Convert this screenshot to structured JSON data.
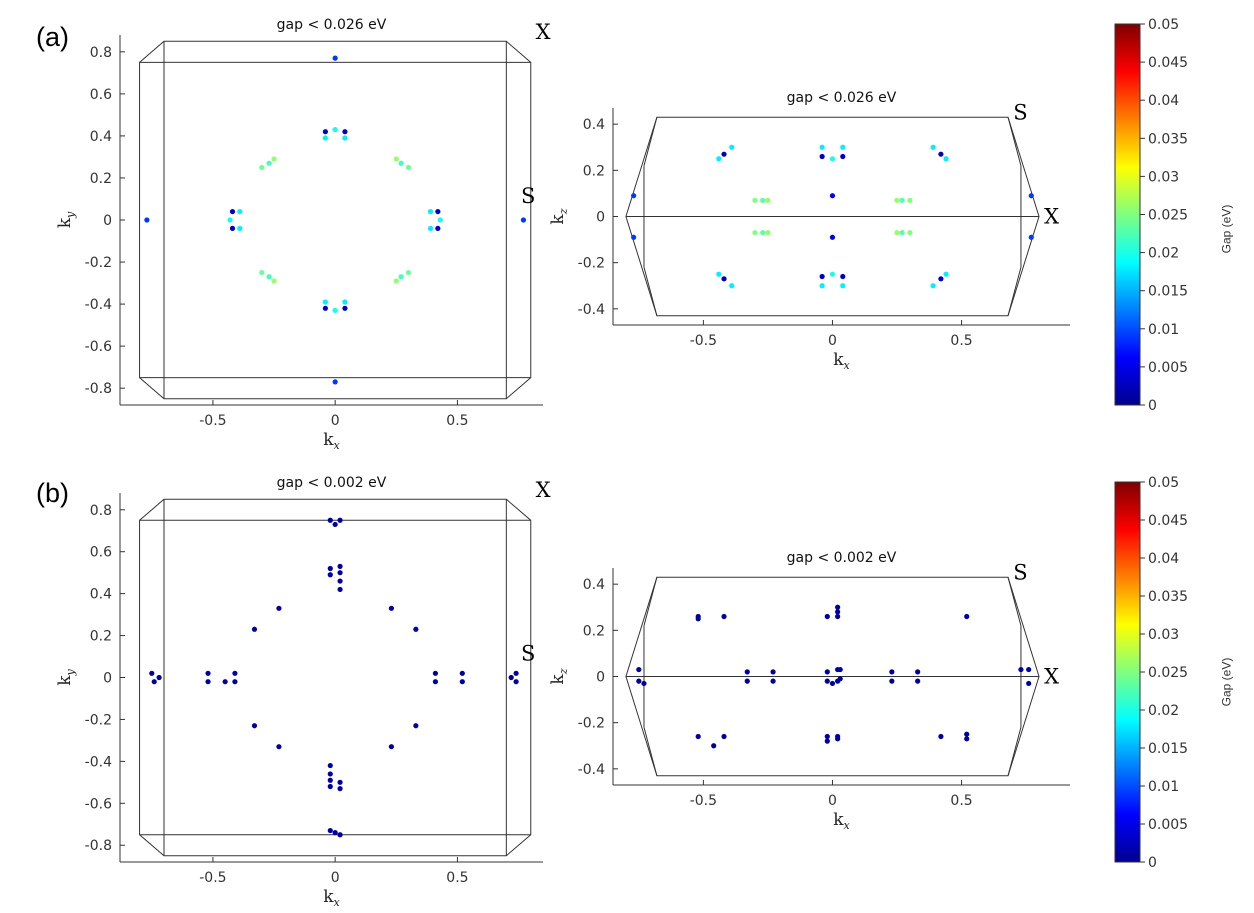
{
  "panel_labels": {
    "a": "(a)",
    "b": "(b)"
  },
  "colorbar": {
    "label": "Gap (eV)",
    "ticks": [
      "0.05",
      "0.045",
      "0.04",
      "0.035",
      "0.03",
      "0.025",
      "0.02",
      "0.015",
      "0.01",
      "0.005",
      "0"
    ],
    "range": [
      0,
      0.05
    ],
    "colormap": "jet"
  },
  "chart_data": [
    {
      "id": "a-kxky",
      "type": "scatter",
      "title": "gap < 0.026 eV",
      "xlabel": "k_x",
      "ylabel": "k_y",
      "xlim": [
        -0.88,
        0.85
      ],
      "ylim": [
        -0.88,
        0.88
      ],
      "xticks": [
        -0.5,
        0,
        0.5
      ],
      "yticks": [
        0.8,
        0.6,
        0.4,
        0.2,
        0,
        -0.2,
        -0.4,
        -0.6,
        -0.8
      ],
      "points_label": {
        "X": "X",
        "S": "S"
      },
      "brillouin_zone": "xy",
      "points": [
        [
          0,
          0.77,
          0.009
        ],
        [
          0,
          -0.77,
          0.009
        ],
        [
          -0.77,
          0,
          0.009
        ],
        [
          0.77,
          0,
          0.009
        ],
        [
          -0.04,
          0.42,
          0.003
        ],
        [
          0.04,
          0.42,
          0.003
        ],
        [
          -0.04,
          0.39,
          0.018
        ],
        [
          0.04,
          0.39,
          0.018
        ],
        [
          0,
          0.43,
          0.02
        ],
        [
          -0.04,
          -0.42,
          0.003
        ],
        [
          0.04,
          -0.42,
          0.003
        ],
        [
          -0.04,
          -0.39,
          0.018
        ],
        [
          0.04,
          -0.39,
          0.018
        ],
        [
          0,
          -0.43,
          0.02
        ],
        [
          0.42,
          0.04,
          0.003
        ],
        [
          0.42,
          -0.04,
          0.003
        ],
        [
          0.39,
          0.04,
          0.018
        ],
        [
          0.39,
          -0.04,
          0.018
        ],
        [
          0.43,
          0,
          0.02
        ],
        [
          -0.42,
          0.04,
          0.003
        ],
        [
          -0.42,
          -0.04,
          0.003
        ],
        [
          -0.39,
          0.04,
          0.018
        ],
        [
          -0.39,
          -0.04,
          0.018
        ],
        [
          -0.43,
          0,
          0.02
        ],
        [
          -0.3,
          0.25,
          0.024
        ],
        [
          -0.27,
          0.27,
          0.022
        ],
        [
          -0.25,
          0.29,
          0.026
        ],
        [
          0.3,
          0.25,
          0.024
        ],
        [
          0.27,
          0.27,
          0.022
        ],
        [
          0.25,
          0.29,
          0.026
        ],
        [
          -0.3,
          -0.25,
          0.024
        ],
        [
          -0.27,
          -0.27,
          0.022
        ],
        [
          -0.25,
          -0.29,
          0.026
        ],
        [
          0.3,
          -0.25,
          0.024
        ],
        [
          0.27,
          -0.27,
          0.022
        ],
        [
          0.25,
          -0.29,
          0.026
        ]
      ]
    },
    {
      "id": "a-kxkz",
      "type": "scatter",
      "title": "gap < 0.026 eV",
      "xlabel": "k_x",
      "ylabel": "k_z",
      "xlim": [
        -0.85,
        0.92
      ],
      "ylim": [
        -0.47,
        0.47
      ],
      "xticks": [
        -0.5,
        0,
        0.5
      ],
      "yticks": [
        0.4,
        0.2,
        0,
        -0.2,
        -0.4
      ],
      "points_label": {
        "X": "X",
        "S": "S"
      },
      "brillouin_zone": "xz",
      "points": [
        [
          -0.77,
          0.09,
          0.009
        ],
        [
          -0.77,
          -0.09,
          0.009
        ],
        [
          0.77,
          0.09,
          0.009
        ],
        [
          0.77,
          -0.09,
          0.009
        ],
        [
          0,
          0.09,
          0.005
        ],
        [
          0,
          -0.09,
          0.005
        ],
        [
          -0.44,
          0.25,
          0.018
        ],
        [
          -0.42,
          0.27,
          0.003
        ],
        [
          -0.39,
          0.3,
          0.018
        ],
        [
          0.44,
          0.25,
          0.018
        ],
        [
          0.42,
          0.27,
          0.003
        ],
        [
          0.39,
          0.3,
          0.018
        ],
        [
          -0.44,
          -0.25,
          0.018
        ],
        [
          -0.42,
          -0.27,
          0.003
        ],
        [
          -0.39,
          -0.3,
          0.018
        ],
        [
          0.44,
          -0.25,
          0.018
        ],
        [
          0.42,
          -0.27,
          0.003
        ],
        [
          0.39,
          -0.3,
          0.018
        ],
        [
          -0.04,
          0.3,
          0.018
        ],
        [
          0.04,
          0.3,
          0.018
        ],
        [
          -0.04,
          0.26,
          0.003
        ],
        [
          0.04,
          0.26,
          0.003
        ],
        [
          0,
          0.25,
          0.02
        ],
        [
          -0.04,
          -0.3,
          0.018
        ],
        [
          0.04,
          -0.3,
          0.018
        ],
        [
          -0.04,
          -0.26,
          0.003
        ],
        [
          0.04,
          -0.26,
          0.003
        ],
        [
          0,
          -0.25,
          0.02
        ],
        [
          -0.3,
          0.07,
          0.025
        ],
        [
          -0.27,
          0.07,
          0.023
        ],
        [
          -0.25,
          0.07,
          0.026
        ],
        [
          0.3,
          0.07,
          0.025
        ],
        [
          0.27,
          0.07,
          0.023
        ],
        [
          0.25,
          0.07,
          0.026
        ],
        [
          -0.3,
          -0.07,
          0.025
        ],
        [
          -0.27,
          -0.07,
          0.023
        ],
        [
          -0.25,
          -0.07,
          0.026
        ],
        [
          0.3,
          -0.07,
          0.025
        ],
        [
          0.27,
          -0.07,
          0.023
        ],
        [
          0.25,
          -0.07,
          0.026
        ]
      ]
    },
    {
      "id": "b-kxky",
      "type": "scatter",
      "title": "gap < 0.002 eV",
      "xlabel": "k_x",
      "ylabel": "k_y",
      "xlim": [
        -0.88,
        0.85
      ],
      "ylim": [
        -0.88,
        0.88
      ],
      "xticks": [
        -0.5,
        0,
        0.5
      ],
      "yticks": [
        0.8,
        0.6,
        0.4,
        0.2,
        0,
        -0.2,
        -0.4,
        -0.6,
        -0.8
      ],
      "points_label": {
        "X": "X",
        "S": "S"
      },
      "brillouin_zone": "xy",
      "points": [
        [
          -0.02,
          0.75,
          0.001
        ],
        [
          0.02,
          0.75,
          0.001
        ],
        [
          0,
          0.73,
          0.001
        ],
        [
          -0.02,
          -0.73,
          0.001
        ],
        [
          0.02,
          -0.75,
          0.001
        ],
        [
          0,
          -0.74,
          0.001
        ],
        [
          -0.02,
          0.52,
          0.001
        ],
        [
          0.02,
          0.53,
          0.001
        ],
        [
          -0.02,
          0.49,
          0.001
        ],
        [
          0.02,
          0.5,
          0.001
        ],
        [
          0.02,
          0.46,
          0.001
        ],
        [
          0.02,
          0.42,
          0.001
        ],
        [
          -0.02,
          -0.52,
          0.001
        ],
        [
          0.02,
          -0.53,
          0.001
        ],
        [
          -0.02,
          -0.49,
          0.001
        ],
        [
          0.02,
          -0.5,
          0.001
        ],
        [
          -0.02,
          -0.46,
          0.001
        ],
        [
          -0.02,
          -0.42,
          0.001
        ],
        [
          -0.75,
          0.02,
          0.001
        ],
        [
          -0.74,
          -0.02,
          0.001
        ],
        [
          -0.72,
          0,
          0.001
        ],
        [
          0.72,
          0,
          0.001
        ],
        [
          0.74,
          0.02,
          0.001
        ],
        [
          0.74,
          -0.02,
          0.001
        ],
        [
          -0.52,
          0.02,
          0.001
        ],
        [
          -0.52,
          -0.02,
          0.001
        ],
        [
          -0.45,
          -0.02,
          0.001
        ],
        [
          -0.41,
          0.02,
          0.001
        ],
        [
          -0.41,
          -0.02,
          0.001
        ],
        [
          0.52,
          0.02,
          0.001
        ],
        [
          0.52,
          -0.02,
          0.001
        ],
        [
          0.41,
          0.02,
          0.001
        ],
        [
          0.41,
          -0.02,
          0.001
        ],
        [
          -0.33,
          0.23,
          0.001
        ],
        [
          -0.23,
          0.33,
          0.001
        ],
        [
          0.23,
          0.33,
          0.001
        ],
        [
          0.33,
          0.23,
          0.001
        ],
        [
          -0.33,
          -0.23,
          0.001
        ],
        [
          -0.23,
          -0.33,
          0.001
        ],
        [
          0.23,
          -0.33,
          0.001
        ],
        [
          0.33,
          -0.23,
          0.001
        ]
      ]
    },
    {
      "id": "b-kxkz",
      "type": "scatter",
      "title": "gap < 0.002 eV",
      "xlabel": "k_x",
      "ylabel": "k_z",
      "xlim": [
        -0.85,
        0.92
      ],
      "ylim": [
        -0.47,
        0.47
      ],
      "xticks": [
        -0.5,
        0,
        0.5
      ],
      "yticks": [
        0.4,
        0.2,
        0,
        -0.2,
        -0.4
      ],
      "points_label": {
        "X": "X",
        "S": "S"
      },
      "brillouin_zone": "xz",
      "points": [
        [
          -0.75,
          0.03,
          0.001
        ],
        [
          -0.75,
          -0.02,
          0.001
        ],
        [
          -0.73,
          -0.03,
          0.001
        ],
        [
          0.73,
          0.03,
          0.001
        ],
        [
          0.76,
          0.03,
          0.001
        ],
        [
          0.76,
          -0.03,
          0.001
        ],
        [
          -0.52,
          0.26,
          0.001
        ],
        [
          -0.52,
          0.25,
          0.001
        ],
        [
          -0.42,
          0.26,
          0.001
        ],
        [
          0.52,
          0.26,
          0.001
        ],
        [
          -0.02,
          0.26,
          0.001
        ],
        [
          0.02,
          0.3,
          0.001
        ],
        [
          0.02,
          0.28,
          0.001
        ],
        [
          0.02,
          0.26,
          0.001
        ],
        [
          -0.52,
          -0.26,
          0.001
        ],
        [
          -0.46,
          -0.3,
          0.001
        ],
        [
          -0.42,
          -0.26,
          0.001
        ],
        [
          0.42,
          -0.26,
          0.001
        ],
        [
          0.52,
          -0.25,
          0.001
        ],
        [
          0.52,
          -0.27,
          0.001
        ],
        [
          -0.02,
          -0.26,
          0.001
        ],
        [
          -0.02,
          -0.28,
          0.001
        ],
        [
          0.02,
          -0.26,
          0.001
        ],
        [
          0.02,
          -0.27,
          0.001
        ],
        [
          -0.33,
          0.02,
          0.001
        ],
        [
          -0.33,
          -0.02,
          0.001
        ],
        [
          -0.23,
          0.02,
          0.001
        ],
        [
          -0.23,
          -0.02,
          0.001
        ],
        [
          0.23,
          0.02,
          0.001
        ],
        [
          0.23,
          -0.02,
          0.001
        ],
        [
          0.33,
          0.02,
          0.001
        ],
        [
          0.33,
          -0.02,
          0.001
        ],
        [
          -0.02,
          0.02,
          0.001
        ],
        [
          0.02,
          0.03,
          0.001
        ],
        [
          0.03,
          0.03,
          0.001
        ],
        [
          -0.02,
          -0.02,
          0.001
        ],
        [
          0.02,
          -0.02,
          0.001
        ],
        [
          0.03,
          -0.01,
          0.001
        ],
        [
          0,
          -0.03,
          0.001
        ]
      ]
    }
  ]
}
